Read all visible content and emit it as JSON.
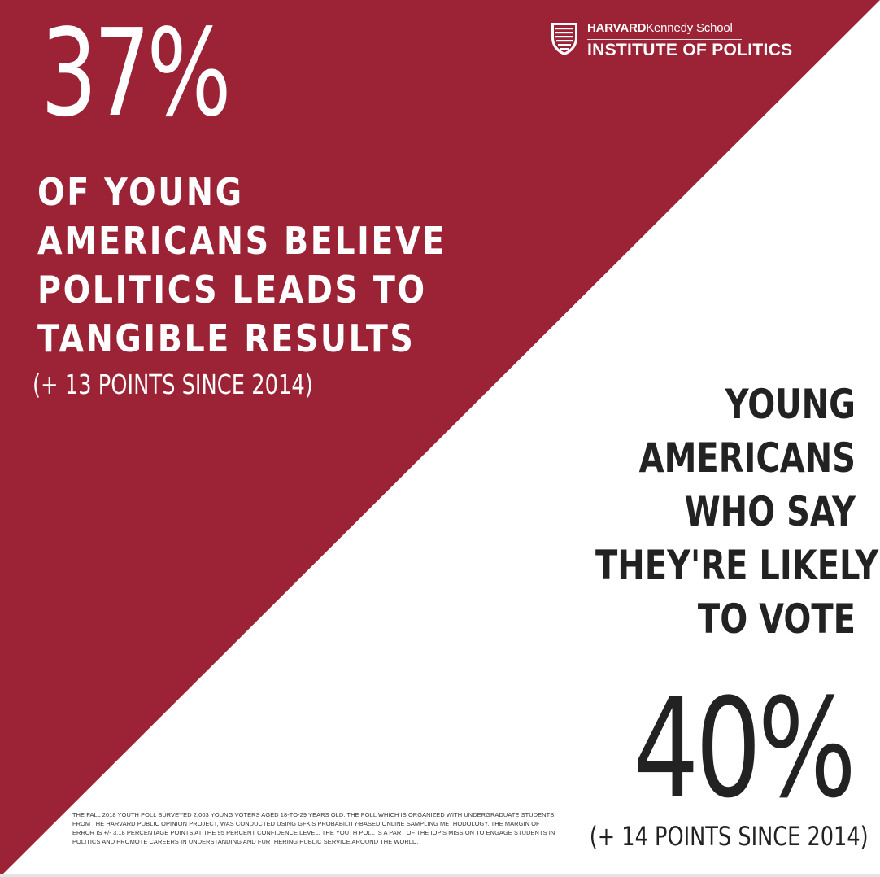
{
  "colors": {
    "crimson": "#9b2335",
    "white": "#ffffff",
    "dark_text": "#222222"
  },
  "logo": {
    "icon": "harvard-shield-icon",
    "line1_bold": "HARVARD",
    "line1_rest": "Kennedy School",
    "line2": "INSTITUTE OF POLITICS"
  },
  "stat_top": {
    "value": "37%",
    "headline_lines": [
      "OF YOUNG",
      "AMERICANS BELIEVE",
      "POLITICS LEADS TO",
      "TANGIBLE RESULTS"
    ],
    "change": "(+ 13 POINTS SINCE 2014)"
  },
  "stat_bottom": {
    "headline_lines": [
      "YOUNG",
      "AMERICANS",
      "WHO SAY",
      "THEY'RE LIKELY",
      "TO VOTE"
    ],
    "value": "40%",
    "change": "(+ 14 POINTS SINCE 2014)"
  },
  "fine_print": "THE FALL 2018 YOUTH POLL SURVEYED 2,003 YOUNG VOTERS AGED 18-TO-29 YEARS OLD. THE POLL WHICH IS ORGANIZED WITH UNDERGRADUATE STUDENTS FROM THE HARVARD PUBLIC OPINION PROJECT, WAS CONDUCTED USING GFK'S PROBABILITY-BASED ONLINE SAMPLING METHODOLOGY. THE MARGIN OF ERROR IS +/- 3.18 PERCENTAGE POINTS AT THE 95 PERCENT CONFIDENCE LEVEL. THE YOUTH POLL IS A PART OF THE IOP'S MISSION TO ENGAGE STUDENTS IN POLITICS AND PROMOTE CAREERS IN UNDERSTANDING AND FURTHERING PUBLIC SERVICE AROUND THE WORLD."
}
